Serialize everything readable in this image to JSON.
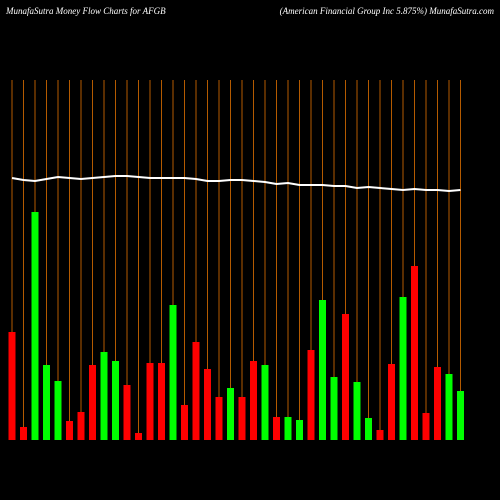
{
  "chart_data": {
    "type": "bar",
    "title": "MunafaSutra  Money  Flow  Charts for AFGB",
    "subtitle": "(American  Financial  Group Inc 5.875%) MunafaSutra.com",
    "ylim": [
      0,
      360
    ],
    "values": [
      108,
      13,
      228,
      75,
      59,
      19,
      28,
      75,
      88,
      79,
      55,
      7,
      77,
      77,
      135,
      35,
      98,
      71,
      43,
      52,
      43,
      79,
      75,
      23,
      23,
      20,
      90,
      140,
      63,
      126,
      58,
      22,
      10,
      76,
      143,
      174,
      27,
      73,
      66,
      49
    ],
    "bar_colors": [
      "red",
      "red",
      "lime",
      "lime",
      "lime",
      "red",
      "red",
      "red",
      "lime",
      "lime",
      "red",
      "red",
      "red",
      "red",
      "lime",
      "red",
      "red",
      "red",
      "red",
      "lime",
      "red",
      "red",
      "lime",
      "red",
      "lime",
      "lime",
      "red",
      "lime",
      "lime",
      "red",
      "lime",
      "lime",
      "red",
      "red",
      "lime",
      "red",
      "red",
      "red",
      "lime",
      "lime"
    ],
    "line_values": [
      262,
      260,
      259,
      261,
      263,
      262,
      261,
      262,
      263,
      264,
      264,
      263,
      262,
      262,
      262,
      262,
      261,
      259,
      259,
      260,
      260,
      259,
      258,
      256,
      257,
      255,
      255,
      255,
      254,
      254,
      252,
      253,
      252,
      251,
      250,
      251,
      250,
      250,
      249,
      250
    ],
    "line_color": "white",
    "grid_color": "#b35a00",
    "grid": true
  }
}
